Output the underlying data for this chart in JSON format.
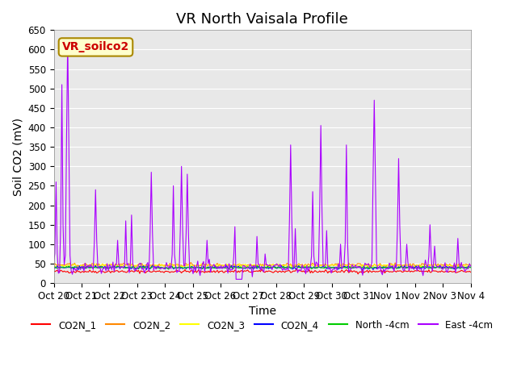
{
  "title": "VR North Vaisala Profile",
  "ylabel": "Soil CO2 (mV)",
  "xlabel": "Time",
  "annotation": "VR_soilco2",
  "ylim": [
    0,
    650
  ],
  "yticks": [
    0,
    50,
    100,
    150,
    200,
    250,
    300,
    350,
    400,
    450,
    500,
    550,
    600,
    650
  ],
  "x_labels": [
    "Oct 20",
    "Oct 21",
    "Oct 22",
    "Oct 23",
    "Oct 24",
    "Oct 25",
    "Oct 26",
    "Oct 27",
    "Oct 28",
    "Oct 29",
    "Oct 30",
    "Oct 31",
    "Nov 1",
    "Nov 2",
    "Nov 3",
    "Nov 4"
  ],
  "x_tick_positions": [
    0,
    1,
    2,
    3,
    4,
    5,
    6,
    7,
    8,
    9,
    10,
    11,
    12,
    13,
    14,
    15
  ],
  "background_color": "#e8e8e8",
  "legend_entries": [
    {
      "label": "CO2N_1",
      "color": "#ff0000"
    },
    {
      "label": "CO2N_2",
      "color": "#ff8800"
    },
    {
      "label": "CO2N_3",
      "color": "#ffff00"
    },
    {
      "label": "CO2N_4",
      "color": "#0000ff"
    },
    {
      "label": "North -4cm",
      "color": "#00cc00"
    },
    {
      "label": "East -4cm",
      "color": "#aa00ff"
    }
  ],
  "annotation_bg": "#ffffcc",
  "annotation_border": "#aa8800",
  "annotation_text_color": "#cc0000",
  "title_fontsize": 13,
  "axis_fontsize": 10,
  "tick_fontsize": 8.5
}
